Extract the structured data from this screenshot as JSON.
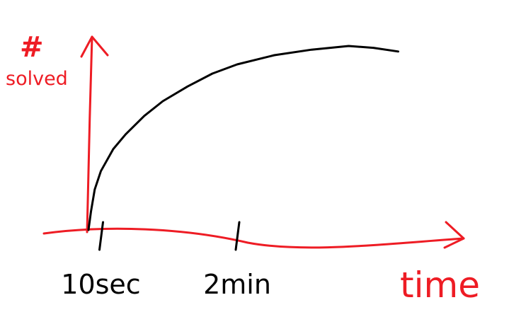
{
  "chart_data": {
    "type": "line",
    "title": "",
    "ylabel": "# solved",
    "xlabel": "time",
    "x_tick_labels": [
      "10sec",
      "2min"
    ],
    "x_tick_values": [
      10,
      120
    ],
    "x_unit": "seconds",
    "y_tick_labels": [],
    "series": [
      {
        "points": [
          [
            0,
            0
          ],
          [
            2,
            10
          ],
          [
            5,
            22
          ],
          [
            10,
            32
          ],
          [
            20,
            44
          ],
          [
            30,
            52
          ],
          [
            45,
            62
          ],
          [
            60,
            70
          ],
          [
            80,
            78
          ],
          [
            100,
            85
          ],
          [
            120,
            90
          ],
          [
            150,
            95
          ],
          [
            180,
            98
          ],
          [
            210,
            100
          ],
          [
            230,
            99
          ],
          [
            250,
            97
          ]
        ]
      }
    ],
    "xlim": [
      -5,
      280
    ],
    "ylim": [
      0,
      105
    ],
    "grid": false,
    "legend": "none",
    "colors": {
      "axes": "#ee1c24",
      "curve": "#000000",
      "tick_text": "#000000",
      "axis_label": "#ee1c24"
    }
  }
}
